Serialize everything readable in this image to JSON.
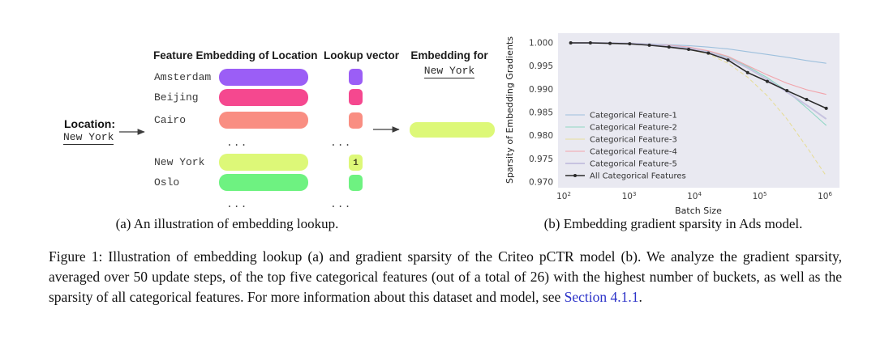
{
  "panel_a": {
    "location_label": "Location:",
    "location_value": "New York",
    "headers": {
      "embedding_table": "Feature Embedding of Location",
      "lookup": "Lookup vector",
      "result_line1": "Embedding for",
      "result_line2": "New York"
    },
    "rows": [
      {
        "label": "Amsterdam",
        "color": "#9b5ef6",
        "lookup": ""
      },
      {
        "label": "Beijing",
        "color": "#f5488f",
        "lookup": ""
      },
      {
        "label": "Cairo",
        "color": "#f98e82",
        "lookup": ""
      },
      {
        "label": "New York",
        "color": "#ddf878",
        "lookup": "1"
      },
      {
        "label": "Oslo",
        "color": "#6ef281",
        "lookup": ""
      }
    ],
    "ellipsis": "...",
    "result_color": "#ddf878",
    "subcaption": "(a) An illustration of embedding lookup."
  },
  "panel_b": {
    "subcaption": "(b) Embedding gradient sparsity in Ads model."
  },
  "chart_data": {
    "type": "line",
    "xlabel": "Batch Size",
    "ylabel": "Sparsity of Embedding Gradients",
    "x_scale": "log",
    "plot_bg": "#e9e9f1",
    "legend_position": "center-left",
    "grid": false,
    "ylim": [
      0.9688,
      1.0021
    ],
    "yticks": [
      {
        "value": 1.0,
        "label": "1.000"
      },
      {
        "value": 0.995,
        "label": "0.995"
      },
      {
        "value": 0.99,
        "label": "0.990"
      },
      {
        "value": 0.985,
        "label": "0.985"
      },
      {
        "value": 0.98,
        "label": "0.980"
      },
      {
        "value": 0.975,
        "label": "0.975"
      },
      {
        "value": 0.97,
        "label": "0.970"
      }
    ],
    "xtick_exponents": [
      2,
      3,
      4,
      5,
      6
    ],
    "x": [
      128,
      256,
      512,
      1024,
      2048,
      4096,
      8192,
      16384,
      32768,
      65536,
      131072,
      262144,
      524288,
      1048576
    ],
    "series": [
      {
        "name": "Categorical Feature-1",
        "color": "#9dc0dd",
        "width": 1.1,
        "marker": false,
        "dashed": false,
        "values": [
          1.0,
          1.0,
          0.99995,
          0.9999,
          0.9998,
          0.9996,
          0.9994,
          0.9991,
          0.9987,
          0.9981,
          0.9975,
          0.9969,
          0.9962,
          0.9956
        ]
      },
      {
        "name": "Categorical Feature-2",
        "color": "#8fd6c4",
        "width": 1.1,
        "marker": false,
        "dashed": false,
        "values": [
          1.0,
          1.0,
          0.99995,
          0.9999,
          0.9997,
          0.9994,
          0.999,
          0.9982,
          0.9969,
          0.9949,
          0.9925,
          0.9896,
          0.986,
          0.9822
        ]
      },
      {
        "name": "Categorical Feature-3",
        "color": "#e6dd9b",
        "width": 1.1,
        "marker": false,
        "dashed": true,
        "values": [
          1.0,
          1.0,
          0.99995,
          0.9998,
          0.9996,
          0.9992,
          0.9986,
          0.9976,
          0.9956,
          0.9926,
          0.9886,
          0.9836,
          0.9776,
          0.9713
        ]
      },
      {
        "name": "Categorical Feature-4",
        "color": "#f2a3aa",
        "width": 1.1,
        "marker": false,
        "dashed": false,
        "values": [
          1.0,
          1.0,
          0.99995,
          0.9999,
          0.9997,
          0.9995,
          0.9991,
          0.9983,
          0.9971,
          0.9951,
          0.9931,
          0.9913,
          0.9899,
          0.9889
        ]
      },
      {
        "name": "Categorical Feature-5",
        "color": "#c7c3e0",
        "width": 2.0,
        "marker": false,
        "dashed": false,
        "values": [
          1.0,
          1.0,
          0.99995,
          0.9999,
          0.9997,
          0.9993,
          0.9989,
          0.998,
          0.9967,
          0.9946,
          0.9921,
          0.9894,
          0.9866,
          0.9836
        ]
      },
      {
        "name": "All Categorical Features",
        "color": "#2b2b2b",
        "width": 1.6,
        "marker": true,
        "dashed": false,
        "values": [
          1.0,
          1.0,
          0.9999,
          0.9998,
          0.9995,
          0.9991,
          0.9986,
          0.9978,
          0.9963,
          0.9936,
          0.9917,
          0.9897,
          0.9878,
          0.9859
        ]
      }
    ]
  },
  "caption": {
    "text": "Figure 1: Illustration of embedding lookup (a) and gradient sparsity of the Criteo pCTR model (b). We analyze the gradient sparsity, averaged over 50 update steps, of the top five categorical features (out of a total of 26) with the highest number of buckets, as well as the sparsity of all categorical features. For more information about this dataset and model, see ",
    "link_text": "Section 4.1.1",
    "after_link": "."
  }
}
